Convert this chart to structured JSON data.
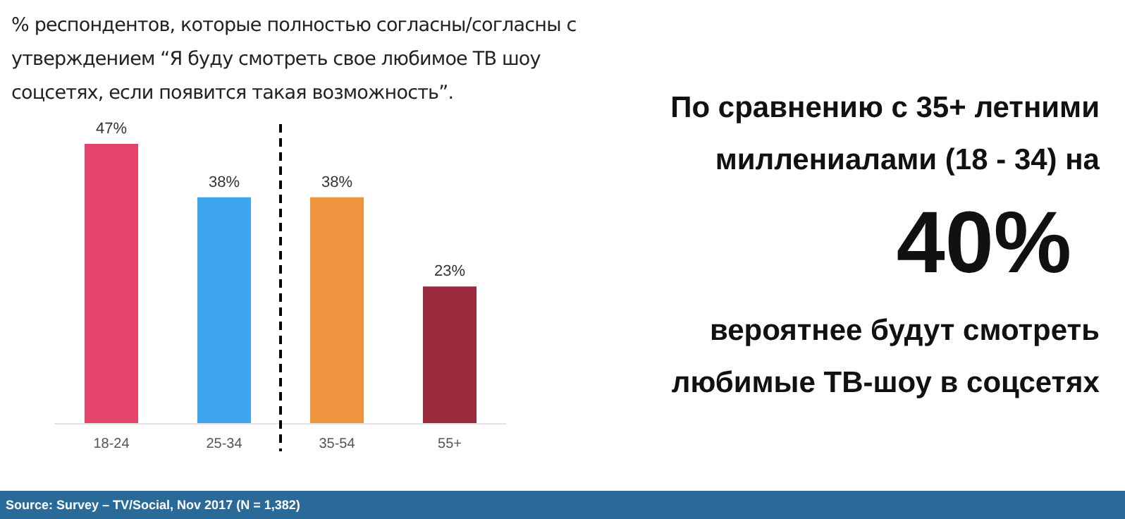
{
  "chart_data": {
    "type": "bar",
    "title": "% респондентов, которые полностью согласны/согласны с утверждением “Я буду смотреть свое любимое ТВ шоу соцсетях, если появится такая возможность”.",
    "categories": [
      "18-24",
      "25-34",
      "35-54",
      "55+"
    ],
    "values": [
      47,
      38,
      38,
      23
    ],
    "colors": [
      "#e4436a",
      "#3fa5ef",
      "#f0953f",
      "#9b2a3f"
    ],
    "data_labels": true,
    "value_labels": [
      "47%",
      "38%",
      "38%",
      "23%"
    ],
    "annotations": [
      "По сравнению с 35+ летними миллениалами (18 - 34) на",
      "40%",
      "вероятнее будут смотреть любимые ТВ-шоу в соцсетях",
      "Source: Survey – TV/Social, Nov 2017 (N = 1,382)"
    ],
    "grid": false
  }
}
